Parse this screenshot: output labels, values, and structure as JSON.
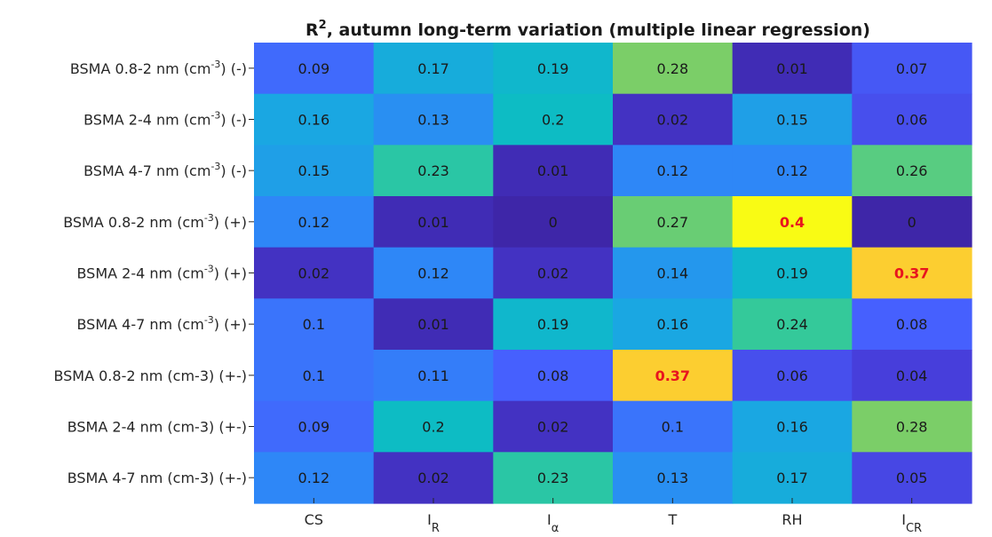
{
  "chart_data": {
    "type": "heatmap",
    "title": {
      "base": "R",
      "sup": "2",
      "rest": ", autumn long-term variation (multiple linear regression)"
    },
    "x_labels": [
      {
        "base": "CS",
        "sub": ""
      },
      {
        "base": "I",
        "sub": "R"
      },
      {
        "base": "I",
        "sub": "α"
      },
      {
        "base": "T",
        "sub": ""
      },
      {
        "base": "RH",
        "sub": ""
      },
      {
        "base": "I",
        "sub": "CR"
      }
    ],
    "y_labels": [
      {
        "pre": "BSMA 0.8-2 nm (cm",
        "sup": "-3",
        "post": ") (-)"
      },
      {
        "pre": "BSMA 2-4 nm (cm",
        "sup": "-3",
        "post": ") (-)"
      },
      {
        "pre": "BSMA 4-7 nm (cm",
        "sup": "-3",
        "post": ") (-)"
      },
      {
        "pre": "BSMA 0.8-2 nm (cm",
        "sup": "-3",
        "post": ") (+)"
      },
      {
        "pre": "BSMA 2-4 nm (cm",
        "sup": "-3",
        "post": ") (+)"
      },
      {
        "pre": "BSMA 4-7 nm (cm",
        "sup": "-3",
        "post": ") (+)"
      },
      {
        "pre": "BSMA 0.8-2 nm (cm-3) (+-)",
        "sup": "",
        "post": ""
      },
      {
        "pre": "BSMA 2-4 nm (cm-3) (+-)",
        "sup": "",
        "post": ""
      },
      {
        "pre": "BSMA 4-7 nm (cm-3) (+-)",
        "sup": "",
        "post": ""
      }
    ],
    "values": [
      [
        "0.09",
        "0.17",
        "0.19",
        "0.28",
        "0.01",
        "0.07"
      ],
      [
        "0.16",
        "0.13",
        "0.2",
        "0.02",
        "0.15",
        "0.06"
      ],
      [
        "0.15",
        "0.23",
        "0.01",
        "0.12",
        "0.12",
        "0.26"
      ],
      [
        "0.12",
        "0.01",
        "0",
        "0.27",
        "0.4",
        "0"
      ],
      [
        "0.02",
        "0.12",
        "0.02",
        "0.14",
        "0.19",
        "0.37"
      ],
      [
        "0.1",
        "0.01",
        "0.19",
        "0.16",
        "0.24",
        "0.08"
      ],
      [
        "0.1",
        "0.11",
        "0.08",
        "0.37",
        "0.06",
        "0.04"
      ],
      [
        "0.09",
        "0.2",
        "0.02",
        "0.1",
        "0.16",
        "0.28"
      ],
      [
        "0.12",
        "0.02",
        "0.23",
        "0.13",
        "0.17",
        "0.05"
      ]
    ],
    "highlighted": [
      [
        3,
        4
      ],
      [
        4,
        5
      ],
      [
        6,
        3
      ]
    ],
    "color_range": [
      0,
      0.4
    ],
    "colormap": "parula",
    "highlight_color": "#e8141e"
  }
}
